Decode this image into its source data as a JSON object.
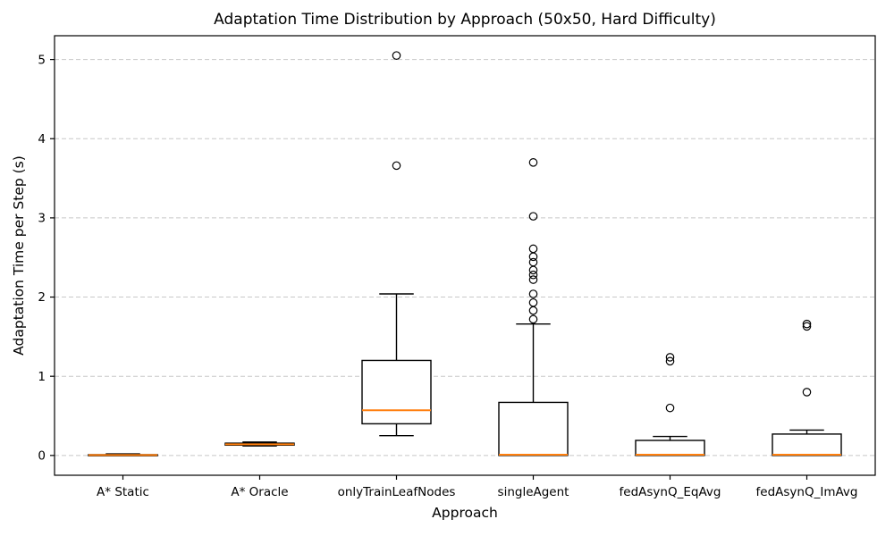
{
  "chart_data": {
    "type": "boxplot",
    "title": "Adaptation Time Distribution by Approach (50x50, Hard Difficulty)",
    "xlabel": "Approach",
    "ylabel": "Adaptation Time per Step (s)",
    "categories": [
      "A* Static",
      "A* Oracle",
      "onlyTrainLeafNodes",
      "singleAgent",
      "fedAsynQ_EqAvg",
      "fedAsynQ_ImAvg"
    ],
    "yticks": [
      0,
      1,
      2,
      3,
      4,
      5
    ],
    "ylim": [
      -0.25,
      5.3
    ],
    "grid": "horizontal-dashed",
    "legend": "none",
    "colors": {
      "median": "#ff7f0e",
      "box_edge": "#000000",
      "grid": "#c8c8c8",
      "spine": "#000000",
      "background": "#ffffff"
    },
    "series": [
      {
        "name": "A* Static",
        "whislo": 0.0,
        "q1": 0.0,
        "med": 0.005,
        "q3": 0.01,
        "whishi": 0.02,
        "fliers": []
      },
      {
        "name": "A* Oracle",
        "whislo": 0.12,
        "q1": 0.13,
        "med": 0.14,
        "q3": 0.155,
        "whishi": 0.17,
        "fliers": []
      },
      {
        "name": "onlyTrainLeafNodes",
        "whislo": 0.25,
        "q1": 0.4,
        "med": 0.57,
        "q3": 1.2,
        "whishi": 2.04,
        "fliers": [
          3.66,
          5.05
        ]
      },
      {
        "name": "singleAgent",
        "whislo": 0.0,
        "q1": 0.0,
        "med": 0.01,
        "q3": 0.67,
        "whishi": 1.66,
        "fliers": [
          1.72,
          1.83,
          1.93,
          2.04,
          2.22,
          2.28,
          2.34,
          2.44,
          2.51,
          2.61,
          3.02,
          3.7
        ]
      },
      {
        "name": "fedAsynQ_EqAvg",
        "whislo": 0.0,
        "q1": 0.0,
        "med": 0.01,
        "q3": 0.19,
        "whishi": 0.24,
        "fliers": [
          0.6,
          1.19,
          1.24
        ]
      },
      {
        "name": "fedAsynQ_ImAvg",
        "whislo": 0.0,
        "q1": 0.0,
        "med": 0.01,
        "q3": 0.27,
        "whishi": 0.32,
        "fliers": [
          0.8,
          1.63,
          1.66
        ]
      }
    ]
  }
}
